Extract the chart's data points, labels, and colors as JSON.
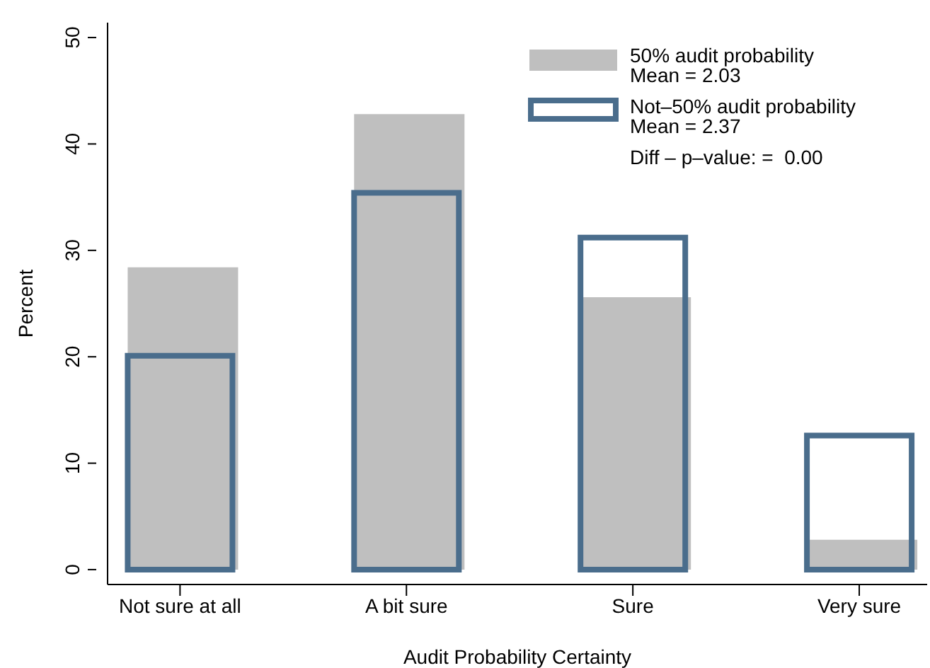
{
  "chart_data": {
    "type": "bar",
    "xlabel": "Audit Probability Certainty",
    "ylabel": "Percent",
    "categories": [
      "Not sure at all",
      "A bit sure",
      "Sure",
      "Very sure"
    ],
    "series": [
      {
        "name": "50% audit probability",
        "color": "#bfbfbf",
        "values": [
          28.4,
          42.8,
          25.6,
          2.8
        ]
      },
      {
        "name": "Not–50% audit probability",
        "color": "#4a6d8c",
        "values": [
          20.1,
          35.4,
          31.2,
          12.6
        ]
      }
    ],
    "annotations": [
      "Mean = 2.03",
      "Mean = 2.37",
      "Diff – p–value: =  0.00"
    ],
    "ylim": [
      -1.4,
      51.4
    ],
    "yticks": [
      0,
      10,
      20,
      30,
      40,
      50
    ],
    "legend": "top right"
  }
}
